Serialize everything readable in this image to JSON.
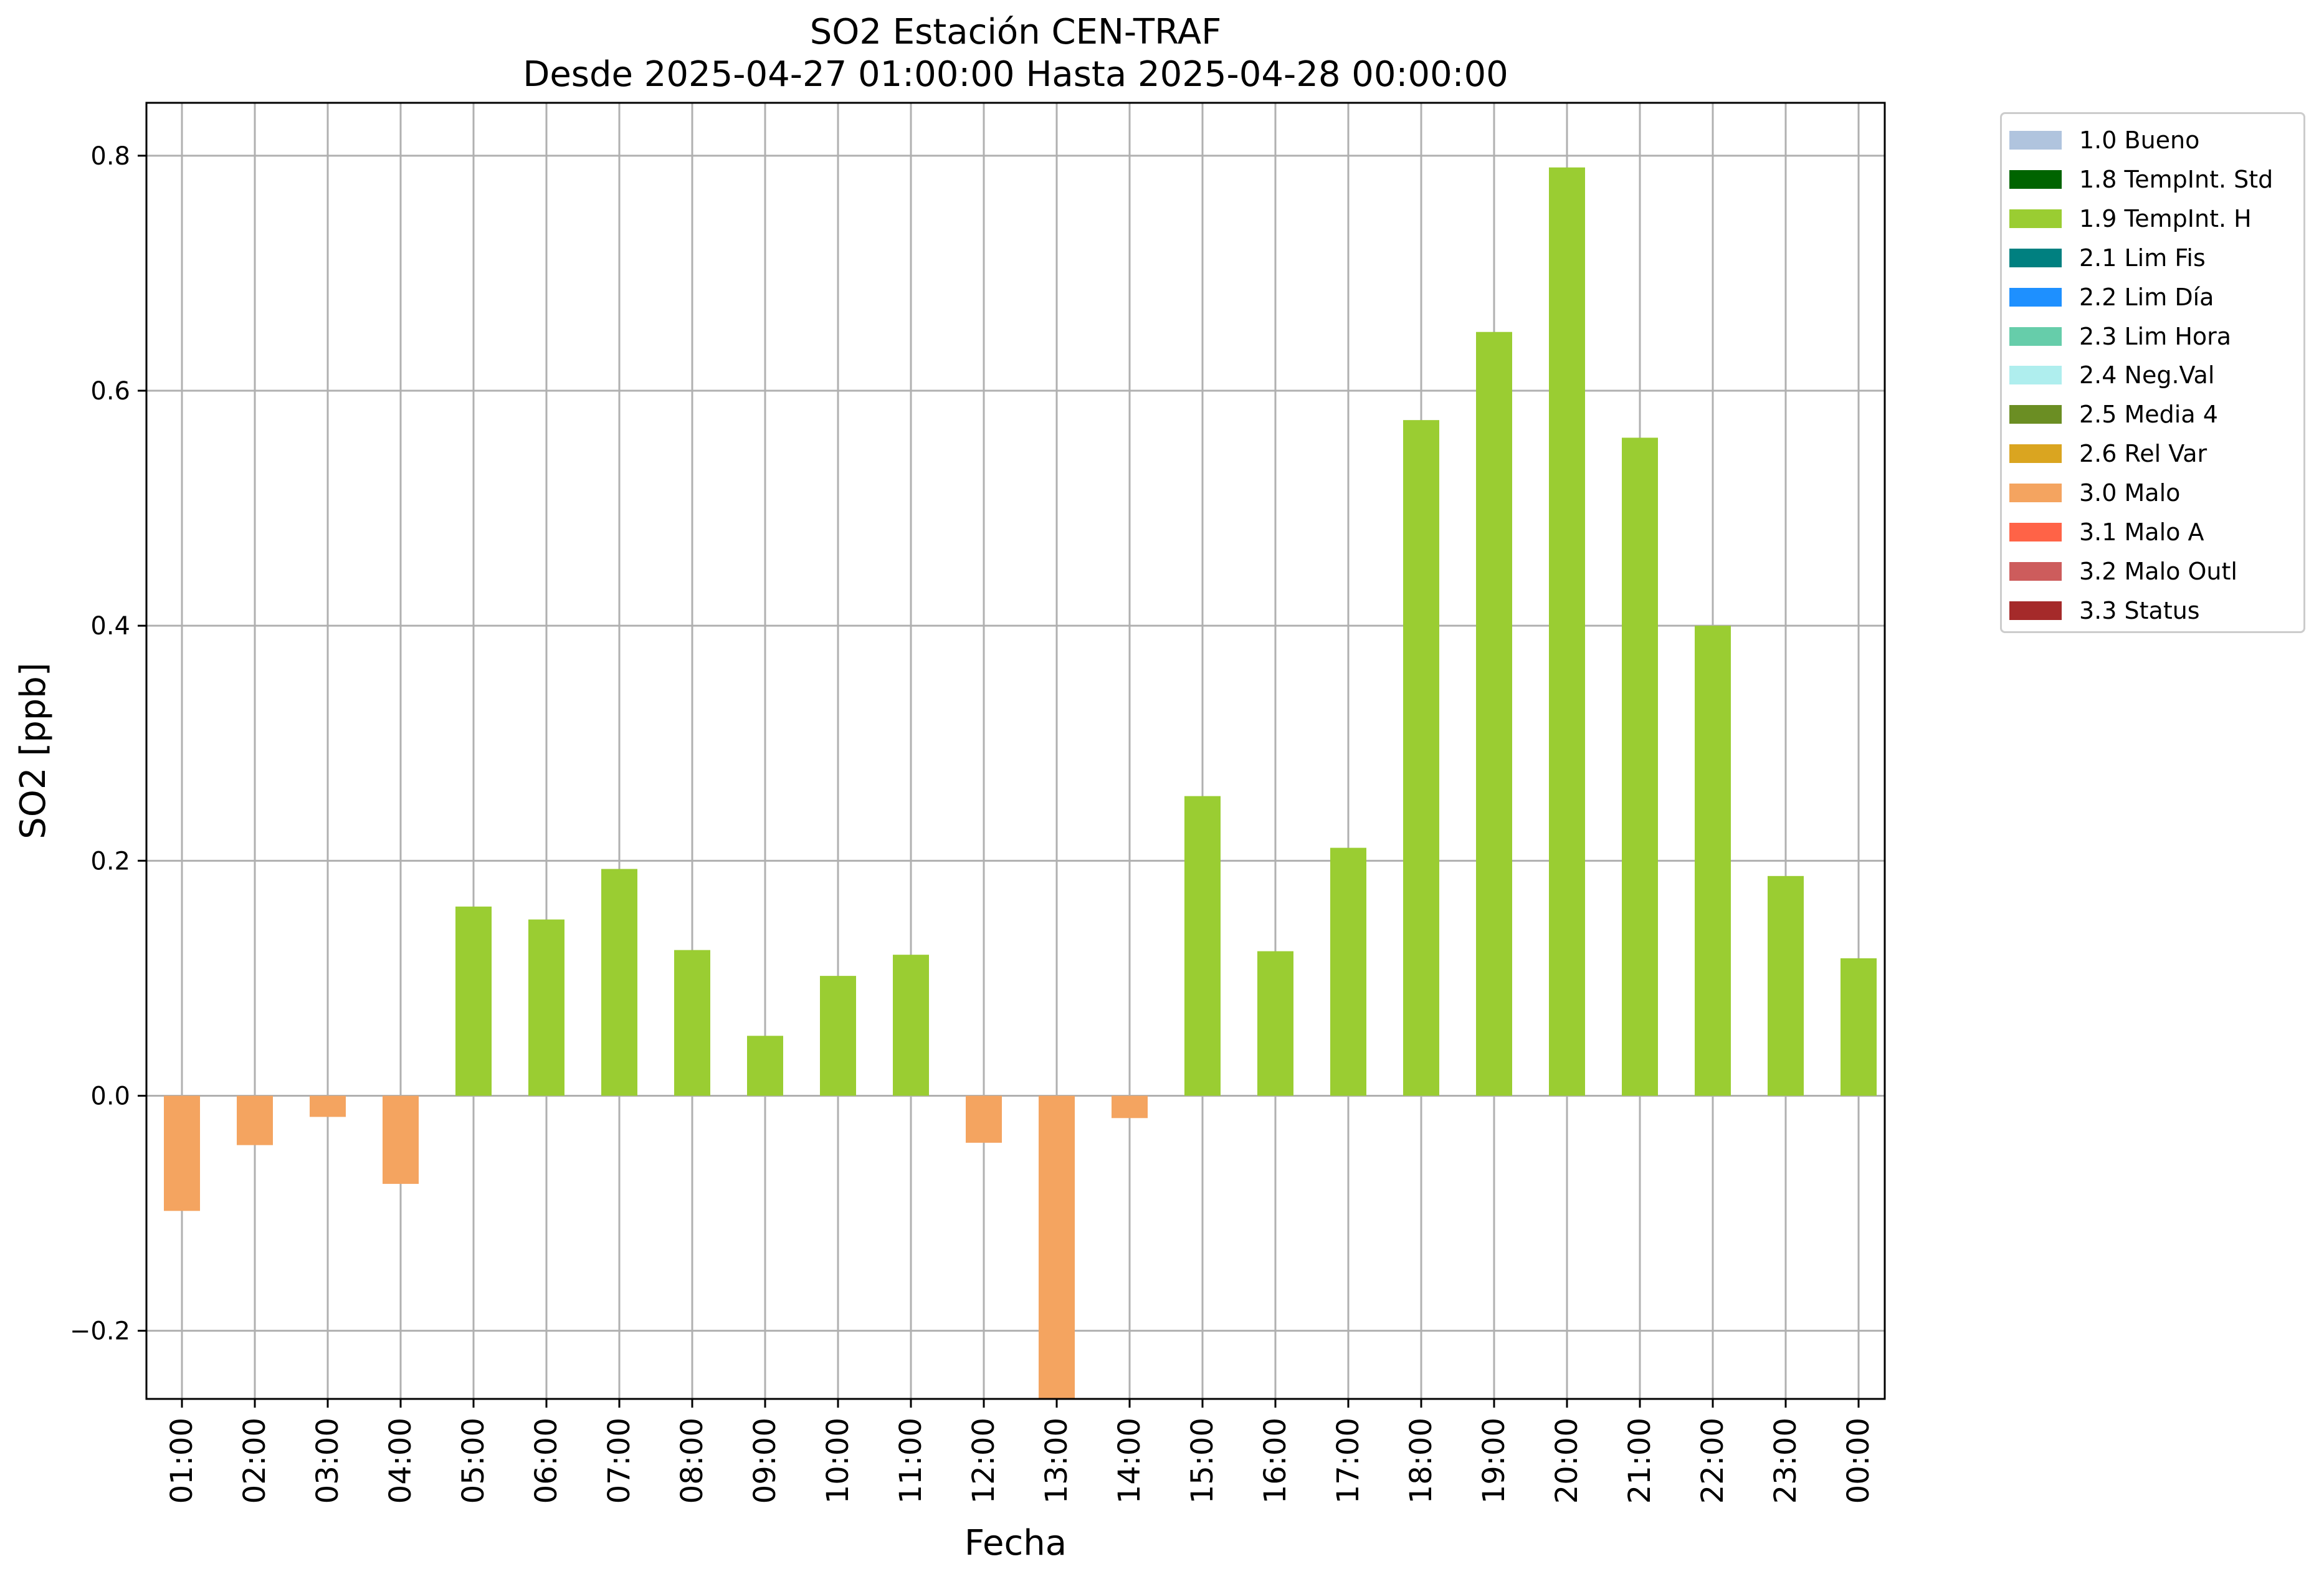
{
  "chart_data": {
    "type": "bar",
    "title": "SO2 Estación CEN-TRAF",
    "subtitle": "Desde 2025-04-27 01:00:00 Hasta 2025-04-28 00:00:00",
    "xlabel": "Fecha",
    "ylabel": "SO2 [ppb]",
    "ylim": [
      -0.258,
      0.845
    ],
    "yticks": [
      "−0.2",
      "0.0",
      "0.2",
      "0.4",
      "0.6",
      "0.8"
    ],
    "ytick_values": [
      -0.2,
      0.0,
      0.2,
      0.4,
      0.6,
      0.8
    ],
    "grid": true,
    "legend_position": "outside-top-right",
    "categories": [
      "01:00",
      "02:00",
      "03:00",
      "04:00",
      "05:00",
      "06:00",
      "07:00",
      "08:00",
      "09:00",
      "10:00",
      "11:00",
      "12:00",
      "13:00",
      "14:00",
      "15:00",
      "16:00",
      "17:00",
      "18:00",
      "19:00",
      "20:00",
      "21:00",
      "22:00",
      "23:00",
      "00:00"
    ],
    "values": [
      -0.098,
      -0.042,
      -0.018,
      -0.075,
      0.161,
      0.15,
      0.193,
      0.124,
      0.051,
      0.102,
      0.12,
      -0.04,
      -0.258,
      -0.019,
      0.255,
      0.123,
      0.211,
      0.575,
      0.65,
      0.79,
      0.56,
      0.4,
      0.187,
      0.117
    ],
    "flags": [
      "3.0 Malo",
      "3.0 Malo",
      "3.0 Malo",
      "3.0 Malo",
      "1.9 TempInt. H",
      "1.9 TempInt. H",
      "1.9 TempInt. H",
      "1.9 TempInt. H",
      "1.9 TempInt. H",
      "1.9 TempInt. H",
      "1.9 TempInt. H",
      "3.0 Malo",
      "3.0 Malo",
      "3.0 Malo",
      "1.9 TempInt. H",
      "1.9 TempInt. H",
      "1.9 TempInt. H",
      "1.9 TempInt. H",
      "1.9 TempInt. H",
      "1.9 TempInt. H",
      "1.9 TempInt. H",
      "1.9 TempInt. H",
      "1.9 TempInt. H",
      "1.9 TempInt. H"
    ],
    "legend": [
      {
        "label": "1.0 Bueno",
        "color": "#b0c4de"
      },
      {
        "label": "1.8 TempInt. Std",
        "color": "#006400"
      },
      {
        "label": "1.9 TempInt. H",
        "color": "#9acd32"
      },
      {
        "label": "2.1 Lim Fis",
        "color": "#008080"
      },
      {
        "label": "2.2 Lim Día",
        "color": "#1e90ff"
      },
      {
        "label": "2.3 Lim Hora",
        "color": "#66cdaa"
      },
      {
        "label": "2.4 Neg.Val",
        "color": "#afeeee"
      },
      {
        "label": "2.5 Media 4",
        "color": "#6b8e23"
      },
      {
        "label": "2.6 Rel Var",
        "color": "#daa520"
      },
      {
        "label": "3.0 Malo",
        "color": "#f4a460"
      },
      {
        "label": "3.1 Malo A",
        "color": "#ff6347"
      },
      {
        "label": "3.2 Malo Outl",
        "color": "#cd5c5c"
      },
      {
        "label": "3.3 Status",
        "color": "#a52a2a"
      }
    ]
  }
}
